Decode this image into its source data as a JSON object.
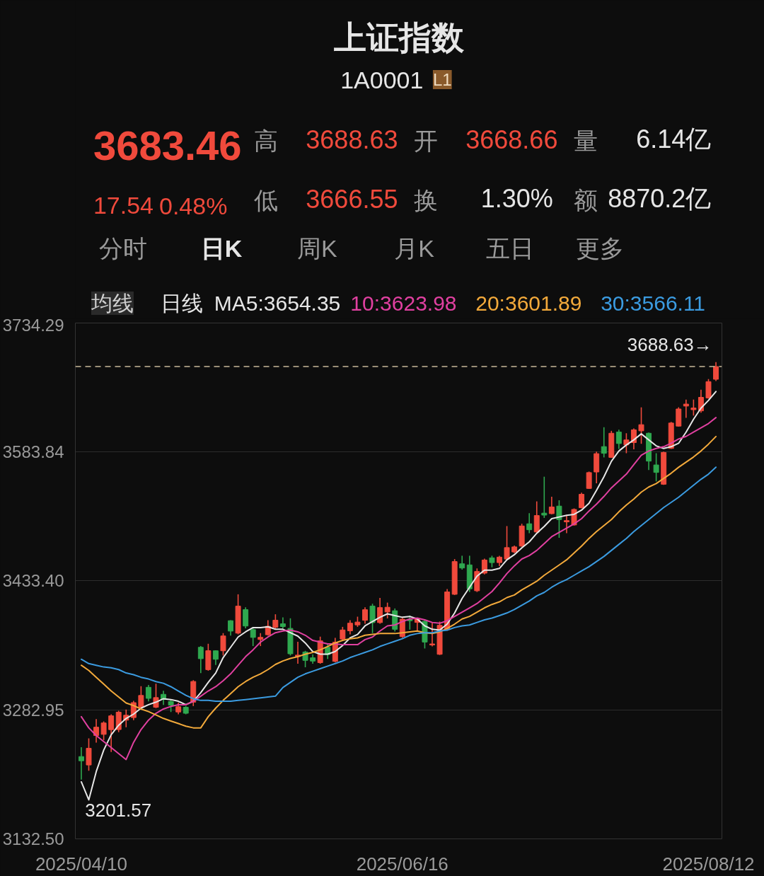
{
  "chart_data": {
    "type": "candlestick",
    "title": "上证指数",
    "subtitle": "1A0001",
    "categories": [
      "2025/04/10",
      null,
      null,
      null,
      null,
      null,
      null,
      null,
      null,
      null,
      null,
      null,
      null,
      null,
      null,
      null,
      null,
      null,
      null,
      null,
      null,
      null,
      null,
      null,
      null,
      null,
      null,
      null,
      null,
      null,
      null,
      null,
      null,
      null,
      null,
      null,
      null,
      null,
      null,
      null,
      null,
      null,
      null,
      "2025/06/16",
      null,
      null,
      null,
      null,
      null,
      null,
      null,
      null,
      null,
      null,
      null,
      null,
      null,
      null,
      null,
      null,
      null,
      null,
      null,
      null,
      null,
      null,
      null,
      null,
      null,
      null,
      null,
      null,
      null,
      null,
      null,
      null,
      null,
      null,
      null,
      null,
      null,
      null,
      null,
      null,
      "2025/08/12",
      null
    ],
    "ohlc": [
      [
        3228.5,
        3239.3,
        3201.57,
        3223.6
      ],
      [
        3218.7,
        3249.8,
        3212.0,
        3238.2
      ],
      [
        3253.1,
        3272.3,
        3244.8,
        3262.8
      ],
      [
        3254.4,
        3269.5,
        3247.6,
        3267.7
      ],
      [
        3259.9,
        3277.8,
        3233.9,
        3276.0
      ],
      [
        3260.0,
        3282.0,
        3257.0,
        3280.3
      ],
      [
        3271.0,
        3283.3,
        3262.7,
        3276.7
      ],
      [
        3274.0,
        3293.5,
        3271.0,
        3291.4
      ],
      [
        3286.0,
        3310.7,
        3283.3,
        3299.8
      ],
      [
        3309.3,
        3312.1,
        3292.8,
        3296.4
      ],
      [
        3286.0,
        3313.5,
        3285.0,
        3297.3
      ],
      [
        3301.1,
        3305.2,
        3288.7,
        3295.1
      ],
      [
        3292.8,
        3295.6,
        3280.5,
        3288.4
      ],
      [
        3280.5,
        3291.5,
        3277.8,
        3286.7
      ],
      [
        3286.0,
        3287.4,
        3277.8,
        3279.0
      ],
      [
        3292.0,
        3317.6,
        3287.4,
        3316.1
      ],
      [
        3356.0,
        3357.4,
        3325.8,
        3342.7
      ],
      [
        3329.9,
        3360.1,
        3328.6,
        3352.0
      ],
      [
        3351.9,
        3352.5,
        3335.4,
        3342.0
      ],
      [
        3351.9,
        3372.5,
        3346.4,
        3369.2
      ],
      [
        3387.0,
        3387.5,
        3369.7,
        3374.9
      ],
      [
        3372.5,
        3417.8,
        3371.1,
        3404.0
      ],
      [
        3399.9,
        3402.7,
        3378.0,
        3380.8
      ],
      [
        3376.6,
        3379.3,
        3357.4,
        3367.5
      ],
      [
        3365.1,
        3372.5,
        3357.4,
        3367.6
      ],
      [
        3370.6,
        3387.5,
        3369.7,
        3380.5
      ],
      [
        3379.3,
        3394.5,
        3378.0,
        3387.6
      ],
      [
        3383.4,
        3390.8,
        3378.0,
        3380.2
      ],
      [
        3378.0,
        3389.8,
        3346.4,
        3348.4
      ],
      [
        3345.3,
        3362.3,
        3336.8,
        3346.8
      ],
      [
        3350.5,
        3351.9,
        3332.7,
        3340.7
      ],
      [
        3343.7,
        3347.8,
        3336.8,
        3339.9
      ],
      [
        3338.1,
        3368.4,
        3336.8,
        3363.5
      ],
      [
        3356.0,
        3360.1,
        3342.3,
        3347.5
      ],
      [
        3339.5,
        3367.0,
        3338.5,
        3362.0
      ],
      [
        3365.6,
        3379.8,
        3364.2,
        3376.2
      ],
      [
        3375.2,
        3387.5,
        3371.1,
        3384.1
      ],
      [
        3382.1,
        3391.7,
        3379.8,
        3385.4
      ],
      [
        3387.5,
        3402.7,
        3383.4,
        3399.8
      ],
      [
        3404.0,
        3406.8,
        3372.5,
        3384.8
      ],
      [
        3384.8,
        3413.6,
        3383.4,
        3402.3
      ],
      [
        3397.2,
        3408.1,
        3389.7,
        3402.7
      ],
      [
        3398.6,
        3401.3,
        3374.4,
        3377.0
      ],
      [
        3368.4,
        3390.3,
        3367.0,
        3388.8
      ],
      [
        3388.5,
        3393.1,
        3376.6,
        3387.0
      ],
      [
        3385.0,
        3390.3,
        3375.2,
        3388.8
      ],
      [
        3386.2,
        3387.5,
        3354.6,
        3362.1
      ],
      [
        3358.7,
        3384.8,
        3357.0,
        3359.9
      ],
      [
        3347.8,
        3386.0,
        3347.0,
        3381.6
      ],
      [
        3376.6,
        3423.8,
        3375.5,
        3420.6
      ],
      [
        3417.8,
        3458.9,
        3417.0,
        3456.0
      ],
      [
        3453.4,
        3462.8,
        3446.6,
        3448.5
      ],
      [
        3452.1,
        3462.8,
        3420.5,
        3424.2
      ],
      [
        3421.9,
        3448.0,
        3420.5,
        3444.4
      ],
      [
        3442.5,
        3459.5,
        3441.1,
        3457.8
      ],
      [
        3460.3,
        3462.8,
        3449.3,
        3454.8
      ],
      [
        3454.8,
        3462.8,
        3450.7,
        3461.2
      ],
      [
        3458.9,
        3497.4,
        3458.3,
        3472.3
      ],
      [
        3467.2,
        3474.6,
        3465.8,
        3473.1
      ],
      [
        3474.0,
        3500.1,
        3473.2,
        3497.5
      ],
      [
        3500.1,
        3512.5,
        3489.1,
        3493.1
      ],
      [
        3490.5,
        3526.2,
        3489.6,
        3509.7
      ],
      [
        3512.5,
        3555.0,
        3506.9,
        3510.2
      ],
      [
        3511.9,
        3531.6,
        3511.1,
        3519.7
      ],
      [
        3520.7,
        3527.5,
        3483.7,
        3505.0
      ],
      [
        3502.3,
        3509.7,
        3489.1,
        3503.8
      ],
      [
        3498.7,
        3518.0,
        3497.9,
        3516.8
      ],
      [
        3518.8,
        3536.3,
        3518.0,
        3534.5
      ],
      [
        3541.3,
        3561.0,
        3540.7,
        3559.8
      ],
      [
        3560.5,
        3584.3,
        3547.3,
        3581.9
      ],
      [
        3590.1,
        3612.7,
        3577.5,
        3582.3
      ],
      [
        3577.5,
        3608.5,
        3576.9,
        3605.7
      ],
      [
        3607.1,
        3609.9,
        3587.4,
        3593.7
      ],
      [
        3592.1,
        3605.7,
        3582.4,
        3597.9
      ],
      [
        3594.8,
        3611.3,
        3587.0,
        3609.7
      ],
      [
        3608.5,
        3635.9,
        3593.4,
        3615.7
      ],
      [
        3605.7,
        3606.5,
        3562.7,
        3573.2
      ],
      [
        3568.7,
        3582.4,
        3549.5,
        3560.0
      ],
      [
        3546.2,
        3584.3,
        3545.4,
        3583.3
      ],
      [
        3588.0,
        3618.9,
        3587.4,
        3617.6
      ],
      [
        3614.0,
        3636.0,
        3613.5,
        3634.0
      ],
      [
        3637.4,
        3645.0,
        3623.6,
        3639.7
      ],
      [
        3633.2,
        3645.0,
        3626.3,
        3635.1
      ],
      [
        3631.8,
        3656.5,
        3629.6,
        3647.6
      ],
      [
        3646.9,
        3668.9,
        3646.1,
        3665.9
      ],
      [
        3668.66,
        3688.63,
        3666.55,
        3683.46
      ]
    ],
    "colors": [
      "#2fa84f",
      "#f04a3c",
      "#f04a3c",
      "#f04a3c",
      "#f04a3c",
      "#f04a3c",
      "#f04a3c",
      "#f04a3c",
      "#f04a3c",
      "#2fa84f",
      "#f04a3c",
      "#2fa84f",
      "#2fa84f",
      "#f04a3c",
      "#2fa84f",
      "#f04a3c",
      "#2fa84f",
      "#f04a3c",
      "#2fa84f",
      "#f04a3c",
      "#2fa84f",
      "#f04a3c",
      "#2fa84f",
      "#2fa84f",
      "#f04a3c",
      "#f04a3c",
      "#f04a3c",
      "#2fa84f",
      "#2fa84f",
      "#f04a3c",
      "#2fa84f",
      "#2fa84f",
      "#f04a3c",
      "#2fa84f",
      "#f04a3c",
      "#f04a3c",
      "#f04a3c",
      "#f04a3c",
      "#f04a3c",
      "#2fa84f",
      "#f04a3c",
      "#f04a3c",
      "#2fa84f",
      "#f04a3c",
      "#2fa84f",
      "#f04a3c",
      "#2fa84f",
      "#f04a3c",
      "#f04a3c",
      "#f04a3c",
      "#f04a3c",
      "#2fa84f",
      "#2fa84f",
      "#f04a3c",
      "#f04a3c",
      "#2fa84f",
      "#f04a3c",
      "#f04a3c",
      "#f04a3c",
      "#f04a3c",
      "#2fa84f",
      "#f04a3c",
      "#2fa84f",
      "#f04a3c",
      "#2fa84f",
      "#f04a3c",
      "#f04a3c",
      "#f04a3c",
      "#f04a3c",
      "#f04a3c",
      "#2fa84f",
      "#f04a3c",
      "#2fa84f",
      "#f04a3c",
      "#f04a3c",
      "#f04a3c",
      "#2fa84f",
      "#2fa84f",
      "#f04a3c",
      "#f04a3c",
      "#f04a3c",
      "#f04a3c",
      "#f04a3c",
      "#f04a3c",
      "#f04a3c",
      "#f04a3c"
    ],
    "series": [
      {
        "name": "MA5:3654.35",
        "type": "line",
        "color": "#e6e6e6",
        "values": [
          3199,
          3178,
          3211,
          3236,
          3254,
          3265,
          3273,
          3278,
          3285,
          3289,
          3292,
          3296,
          3295,
          3293,
          3289,
          3293,
          3303,
          3315,
          3326,
          3344,
          3356,
          3368,
          3374,
          3379,
          3379,
          3380,
          3377,
          3377,
          3373,
          3369,
          3361,
          3351,
          3348,
          3348,
          3351,
          3358,
          3367,
          3371,
          3381,
          3386,
          3391,
          3395,
          3393,
          3391,
          3392,
          3389,
          3381,
          3377,
          3376,
          3383,
          3396,
          3413,
          3426,
          3439,
          3446,
          3446,
          3448,
          3458,
          3464,
          3472,
          3479,
          3489,
          3497,
          3506,
          3508,
          3510,
          3511,
          3516,
          3524,
          3539,
          3555,
          3573,
          3585,
          3592,
          3598,
          3605,
          3598,
          3591,
          3588,
          3590,
          3594,
          3607,
          3622,
          3635,
          3644,
          3654.35
        ]
      },
      {
        "name": "10:3623.98",
        "type": "line",
        "color": "#e040a0",
        "values": [
          3275,
          3262,
          3253,
          3246,
          3239,
          3232,
          3225,
          3245,
          3260,
          3271,
          3279,
          3284,
          3287,
          3289,
          3289,
          3293,
          3299,
          3305,
          3310,
          3317,
          3325,
          3335,
          3345,
          3353,
          3362,
          3368,
          3373,
          3375,
          3376,
          3374,
          3370,
          3364,
          3362,
          3360,
          3360,
          3359,
          3359,
          3359,
          3365,
          3368,
          3375,
          3381,
          3382,
          3386,
          3389,
          3390,
          3388,
          3385,
          3384,
          3387,
          3392,
          3397,
          3402,
          3407,
          3414,
          3421,
          3431,
          3442,
          3451,
          3459,
          3463,
          3469,
          3477,
          3485,
          3490,
          3495,
          3500,
          3506,
          3515,
          3523,
          3532,
          3542,
          3550,
          3558,
          3569,
          3580,
          3585,
          3588,
          3590,
          3594,
          3599,
          3602,
          3607,
          3612,
          3617,
          3623.98
        ]
      },
      {
        "name": "20:3601.89",
        "type": "line",
        "color": "#f2a93b",
        "values": [
          3335,
          3329,
          3321,
          3313,
          3305,
          3298,
          3291,
          3288,
          3284,
          3281,
          3277,
          3273,
          3270,
          3267,
          3264,
          3262,
          3262,
          3275,
          3285,
          3294,
          3302,
          3310,
          3316,
          3321,
          3325,
          3330,
          3336,
          3340,
          3343,
          3345,
          3348,
          3350,
          3353,
          3357,
          3361,
          3364,
          3366,
          3367,
          3370,
          3371,
          3372,
          3372,
          3372,
          3373,
          3374,
          3375,
          3373,
          3372,
          3374,
          3378,
          3383,
          3389,
          3392,
          3397,
          3402,
          3406,
          3409,
          3414,
          3417,
          3423,
          3428,
          3433,
          3440,
          3446,
          3452,
          3458,
          3466,
          3474,
          3483,
          3491,
          3498,
          3505,
          3514,
          3522,
          3529,
          3537,
          3543,
          3547,
          3553,
          3559,
          3566,
          3572,
          3578,
          3585,
          3593,
          3601.89
        ]
      },
      {
        "name": "30:3566.11",
        "type": "line",
        "color": "#3b9be0",
        "values": [
          3342,
          3337,
          3335,
          3333,
          3332,
          3330,
          3326,
          3324,
          3321,
          3319,
          3316,
          3314,
          3310,
          3305,
          3300,
          3296,
          3294,
          3294,
          3293,
          3293,
          3293,
          3294,
          3295,
          3296,
          3297,
          3298,
          3299,
          3309,
          3315,
          3321,
          3325,
          3328,
          3331,
          3334,
          3337,
          3340,
          3344,
          3347,
          3350,
          3353,
          3357,
          3360,
          3363,
          3366,
          3370,
          3372,
          3373,
          3373,
          3375,
          3376,
          3379,
          3381,
          3382,
          3385,
          3388,
          3390,
          3393,
          3396,
          3400,
          3405,
          3410,
          3416,
          3420,
          3426,
          3431,
          3435,
          3440,
          3445,
          3450,
          3456,
          3462,
          3469,
          3476,
          3483,
          3491,
          3498,
          3505,
          3512,
          3519,
          3525,
          3531,
          3538,
          3545,
          3552,
          3558,
          3566.11
        ]
      }
    ],
    "ylim": [
      3132.5,
      3734.29
    ],
    "yticks": [
      {
        "value": 3132.5,
        "label": "3132.50"
      },
      3282.95,
      {
        "value": 3433.4,
        "label": "3433.40"
      },
      3583.84,
      3734.29
    ],
    "grid": "y",
    "legend": "top",
    "ref_lines": [
      {
        "axis": "y",
        "value": 3683.46,
        "color": "#c9b99a",
        "line_style": "dashed"
      }
    ],
    "annotations": [
      "L1",
      "3683.46",
      "17.54",
      "0.48%",
      "高",
      "3688.63",
      "低",
      "3666.55",
      "开",
      "3668.66",
      "换",
      "1.30%",
      "量",
      "6.14亿",
      "额",
      "8870.2亿",
      "分时",
      "日K",
      "周K",
      "月K",
      "五日",
      "更多",
      "均线",
      "日线",
      "3688.63→",
      "3201.57"
    ]
  }
}
